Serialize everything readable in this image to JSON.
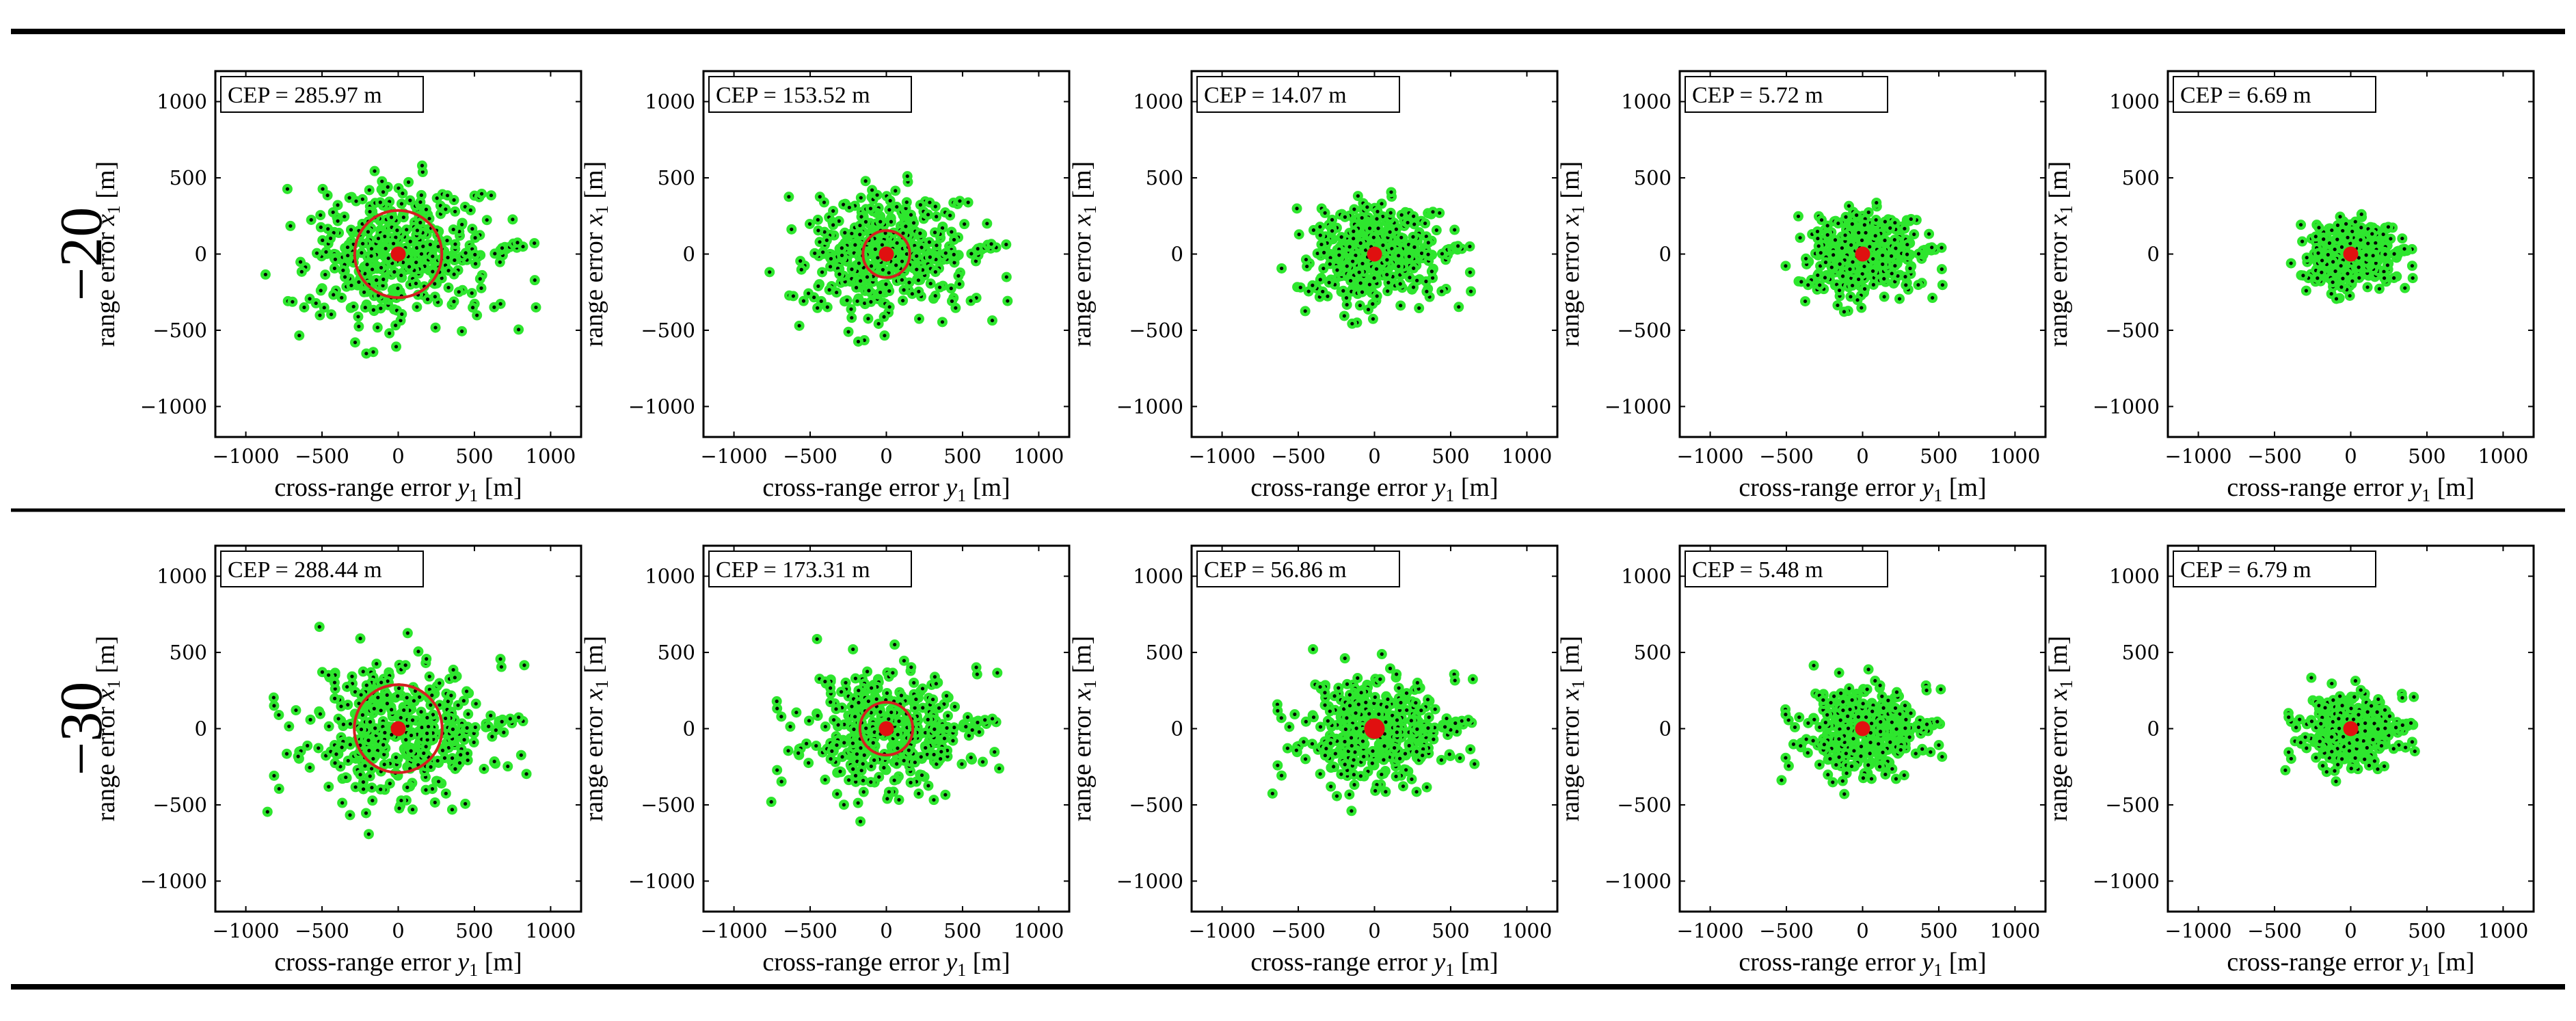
{
  "figure": {
    "xlabel_prefix": "cross-range error ",
    "xlabel_symbol": "y",
    "xlabel_sub": "1",
    "xlabel_unit": " [m]",
    "ylabel_prefix": "range error ",
    "ylabel_symbol": "x",
    "ylabel_sub": "1",
    "ylabel_unit": " [m]"
  },
  "rows": [
    {
      "label": "−20"
    },
    {
      "label": "−30"
    }
  ],
  "colors": {
    "point_fill": "#2ee62e",
    "point_dot": "#000000",
    "cep_circle": "#d42020",
    "center_marker": "#e01010",
    "frame": "#000000"
  },
  "chart_data": [
    {
      "type": "scatter",
      "row": 0,
      "col": 0,
      "cep_label": "CEP = 285.97 m",
      "cep_radius": 285.97,
      "spread": 1.0,
      "xlim": [
        -1200,
        1200
      ],
      "ylim": [
        -1200,
        1200
      ],
      "xticks": [
        -1000,
        -500,
        0,
        500,
        1000
      ],
      "yticks": [
        -1000,
        -500,
        0,
        500,
        1000
      ],
      "xticklabels": [
        "−1000",
        "−500",
        "0",
        "500",
        "1000"
      ],
      "yticklabels": [
        "−1000",
        "−500",
        "0",
        "500",
        "1000"
      ],
      "center": [
        0,
        0
      ]
    },
    {
      "type": "scatter",
      "row": 0,
      "col": 1,
      "cep_label": "CEP = 153.52 m",
      "cep_radius": 153.52,
      "spread": 0.88,
      "xlim": [
        -1200,
        1200
      ],
      "ylim": [
        -1200,
        1200
      ],
      "xticks": [
        -1000,
        -500,
        0,
        500,
        1000
      ],
      "yticks": [
        -1000,
        -500,
        0,
        500,
        1000
      ],
      "xticklabels": [
        "−1000",
        "−500",
        "0",
        "500",
        "1000"
      ],
      "yticklabels": [
        "−1000",
        "−500",
        "0",
        "500",
        "1000"
      ],
      "center": [
        0,
        0
      ]
    },
    {
      "type": "scatter",
      "row": 0,
      "col": 2,
      "cep_label": "CEP = 14.07 m",
      "cep_radius": 14.07,
      "spread": 0.7,
      "xlim": [
        -1200,
        1200
      ],
      "ylim": [
        -1200,
        1200
      ],
      "xticks": [
        -1000,
        -500,
        0,
        500,
        1000
      ],
      "yticks": [
        -1000,
        -500,
        0,
        500,
        1000
      ],
      "xticklabels": [
        "−1000",
        "−500",
        "0",
        "500",
        "1000"
      ],
      "yticklabels": [
        "−1000",
        "−500",
        "0",
        "500",
        "1000"
      ],
      "center": [
        0,
        0
      ]
    },
    {
      "type": "scatter",
      "row": 0,
      "col": 3,
      "cep_label": "CEP = 5.72 m",
      "cep_radius": 5.72,
      "spread": 0.58,
      "xlim": [
        -1200,
        1200
      ],
      "ylim": [
        -1200,
        1200
      ],
      "xticks": [
        -1000,
        -500,
        0,
        500,
        1000
      ],
      "yticks": [
        -1000,
        -500,
        0,
        500,
        1000
      ],
      "xticklabels": [
        "−1000",
        "−500",
        "0",
        "500",
        "1000"
      ],
      "yticklabels": [
        "−1000",
        "−500",
        "0",
        "500",
        "1000"
      ],
      "center": [
        0,
        0
      ]
    },
    {
      "type": "scatter",
      "row": 0,
      "col": 4,
      "cep_label": "CEP = 6.69 m",
      "cep_radius": 6.69,
      "spread": 0.45,
      "xlim": [
        -1200,
        1200
      ],
      "ylim": [
        -1200,
        1200
      ],
      "xticks": [
        -1000,
        -500,
        0,
        500,
        1000
      ],
      "yticks": [
        -1000,
        -500,
        0,
        500,
        1000
      ],
      "xticklabels": [
        "−1000",
        "−500",
        "0",
        "500",
        "1000"
      ],
      "yticklabels": [
        "−1000",
        "−500",
        "0",
        "500",
        "1000"
      ],
      "center": [
        0,
        0
      ]
    },
    {
      "type": "scatter",
      "row": 1,
      "col": 0,
      "cep_label": "CEP = 288.44 m",
      "cep_radius": 288.44,
      "spread": 1.0,
      "xlim": [
        -1200,
        1200
      ],
      "ylim": [
        -1200,
        1200
      ],
      "xticks": [
        -1000,
        -500,
        0,
        500,
        1000
      ],
      "yticks": [
        -1000,
        -500,
        0,
        500,
        1000
      ],
      "xticklabels": [
        "−1000",
        "−500",
        "0",
        "500",
        "1000"
      ],
      "yticklabels": [
        "−1000",
        "−500",
        "0",
        "500",
        "1000"
      ],
      "center": [
        0,
        0
      ]
    },
    {
      "type": "scatter",
      "row": 1,
      "col": 1,
      "cep_label": "CEP = 173.31 m",
      "cep_radius": 173.31,
      "spread": 0.88,
      "xlim": [
        -1200,
        1200
      ],
      "ylim": [
        -1200,
        1200
      ],
      "xticks": [
        -1000,
        -500,
        0,
        500,
        1000
      ],
      "yticks": [
        -1000,
        -500,
        0,
        500,
        1000
      ],
      "xticklabels": [
        "−1000",
        "−500",
        "0",
        "500",
        "1000"
      ],
      "yticklabels": [
        "−1000",
        "−500",
        "0",
        "500",
        "1000"
      ],
      "center": [
        0,
        0
      ]
    },
    {
      "type": "scatter",
      "row": 1,
      "col": 2,
      "cep_label": "CEP = 56.86 m",
      "cep_radius": 56.86,
      "spread": 0.78,
      "xlim": [
        -1200,
        1200
      ],
      "ylim": [
        -1200,
        1200
      ],
      "xticks": [
        -1000,
        -500,
        0,
        500,
        1000
      ],
      "yticks": [
        -1000,
        -500,
        0,
        500,
        1000
      ],
      "xticklabels": [
        "−1000",
        "−500",
        "0",
        "500",
        "1000"
      ],
      "yticklabels": [
        "−1000",
        "−500",
        "0",
        "500",
        "1000"
      ],
      "center": [
        0,
        0
      ]
    },
    {
      "type": "scatter",
      "row": 1,
      "col": 3,
      "cep_label": "CEP = 5.48 m",
      "cep_radius": 5.48,
      "spread": 0.62,
      "xlim": [
        -1200,
        1200
      ],
      "ylim": [
        -1200,
        1200
      ],
      "xticks": [
        -1000,
        -500,
        0,
        500,
        1000
      ],
      "yticks": [
        -1000,
        -500,
        0,
        500,
        1000
      ],
      "xticklabels": [
        "−1000",
        "−500",
        "0",
        "500",
        "1000"
      ],
      "yticklabels": [
        "−1000",
        "−500",
        "0",
        "500",
        "1000"
      ],
      "center": [
        0,
        0
      ]
    },
    {
      "type": "scatter",
      "row": 1,
      "col": 4,
      "cep_label": "CEP = 6.79 m",
      "cep_radius": 6.79,
      "spread": 0.5,
      "xlim": [
        -1200,
        1200
      ],
      "ylim": [
        -1200,
        1200
      ],
      "xticks": [
        -1000,
        -500,
        0,
        500,
        1000
      ],
      "yticks": [
        -1000,
        -500,
        0,
        500,
        1000
      ],
      "xticklabels": [
        "−1000",
        "−500",
        "0",
        "500",
        "1000"
      ],
      "yticklabels": [
        "−1000",
        "−500",
        "0",
        "500",
        "1000"
      ],
      "center": [
        0,
        0
      ]
    }
  ]
}
